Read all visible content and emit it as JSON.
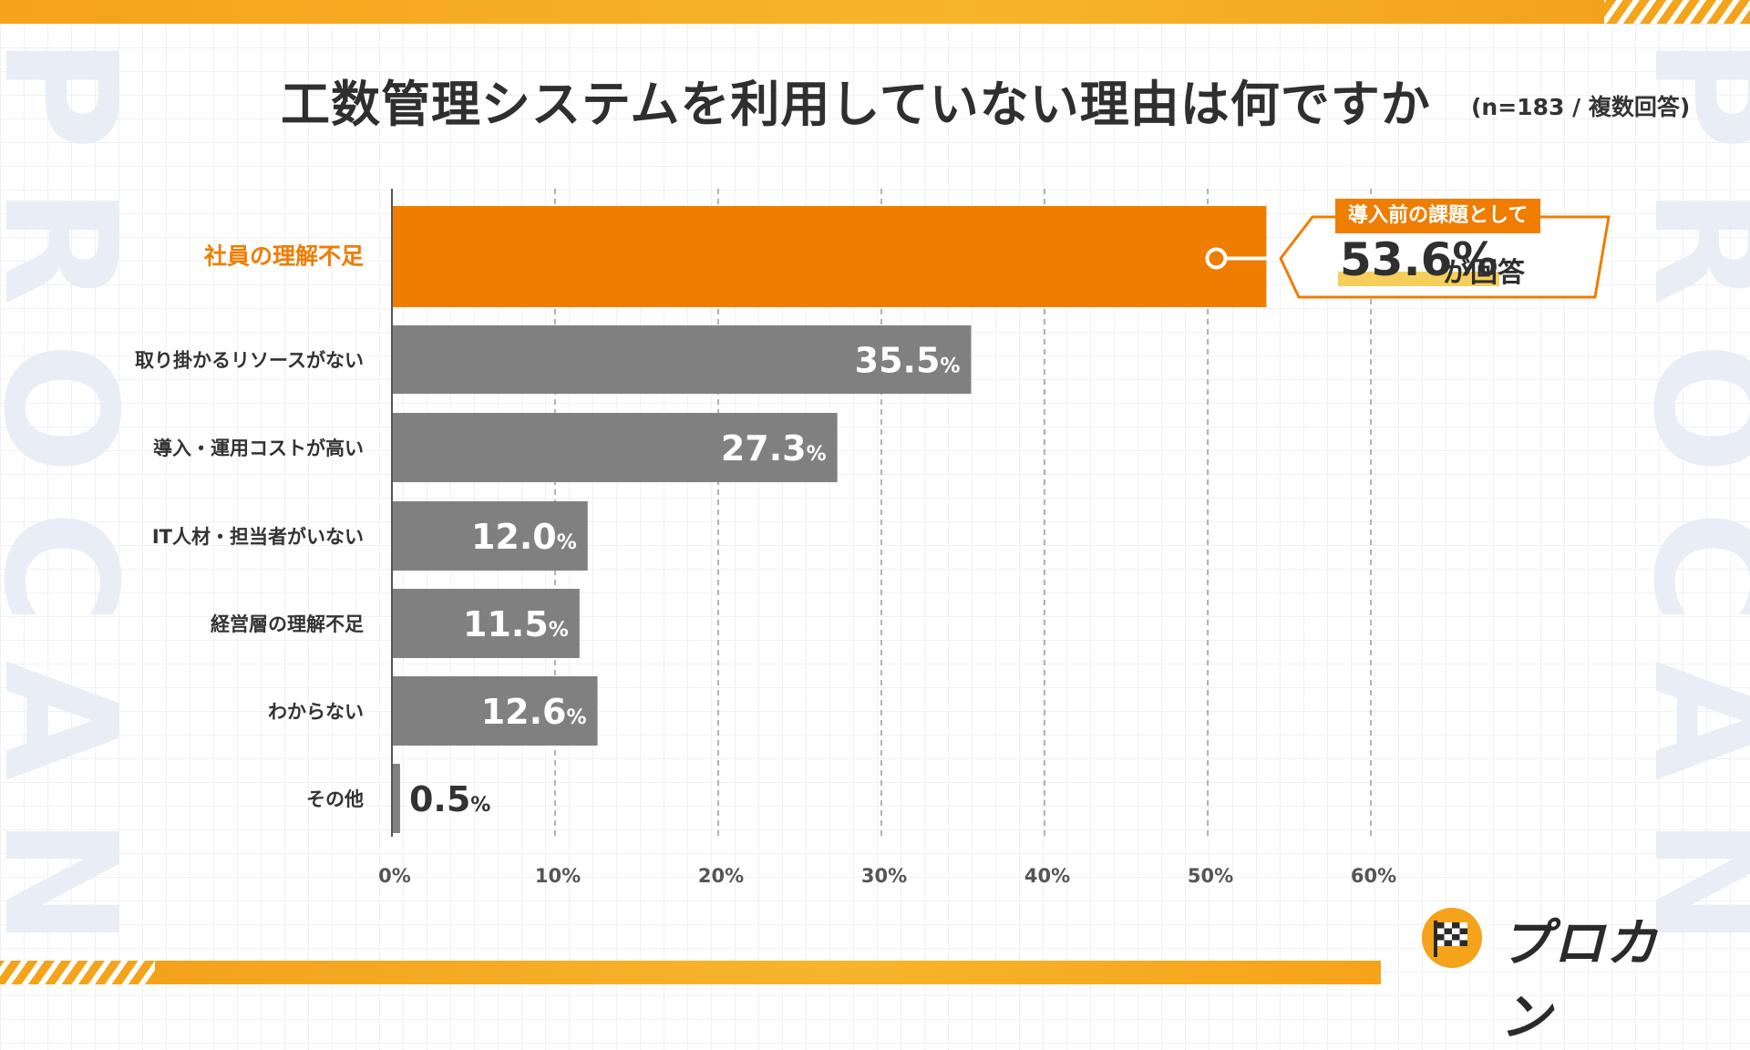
{
  "title": "工数管理システムを利用していない理由は何ですか",
  "subtitle": "(n=183 / 複数回答)",
  "watermark": "PROCAN",
  "brand": "プロカン",
  "callout": {
    "tag": "導入前の課題として",
    "value": "53.6%",
    "suffix": "が回答"
  },
  "colors": {
    "highlight": "#ef7d00",
    "bar": "#808080",
    "accent": "#f5a31a"
  },
  "chart_data": {
    "type": "bar",
    "orientation": "horizontal",
    "categories": [
      "社員の理解不足",
      "取り掛かるリソースがない",
      "導入・運用コストが高い",
      "IT人材・担当者がいない",
      "経営層の理解不足",
      "わからない",
      "その他"
    ],
    "values": [
      53.6,
      35.5,
      27.3,
      12.0,
      11.5,
      12.6,
      0.5
    ],
    "value_labels": [
      "",
      "35.5",
      "27.3",
      "12.0",
      "11.5",
      "12.6",
      "0.5"
    ],
    "value_unit": "%",
    "highlight_index": 0,
    "xlim": [
      0,
      60
    ],
    "xticks": [
      0,
      10,
      20,
      30,
      40,
      50,
      60
    ],
    "xtick_labels": [
      "0%",
      "10%",
      "20%",
      "30%",
      "40%",
      "50%",
      "60%"
    ],
    "grid": "vertical dashed"
  }
}
